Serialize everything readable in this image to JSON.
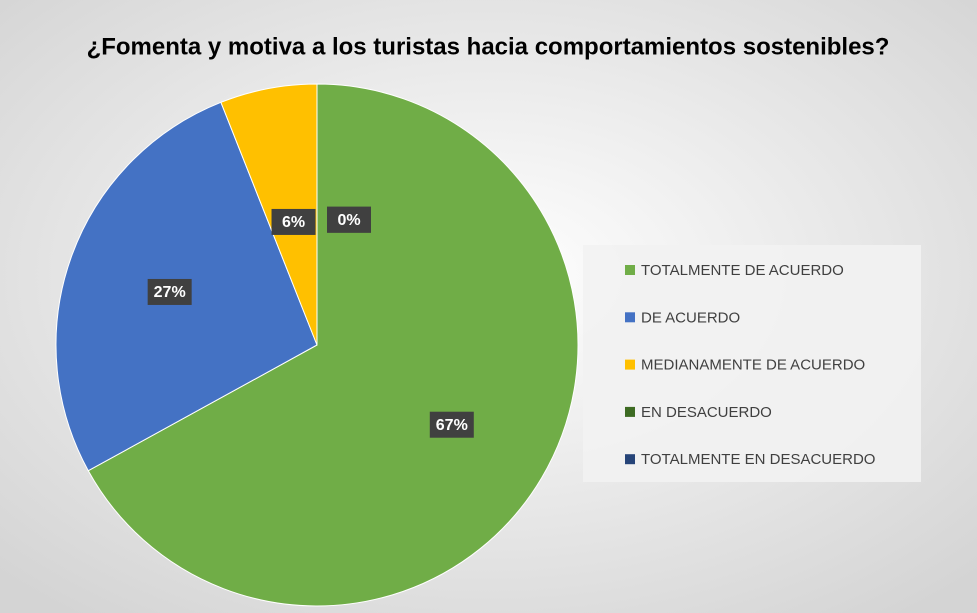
{
  "chart_data": {
    "type": "pie",
    "title": "¿Fomenta y motiva a  los turistas hacia comportamientos sostenibles?",
    "categories": [
      "TOTALMENTE DE ACUERDO",
      "DE ACUERDO",
      "MEDIANAMENTE DE ACUERDO",
      "EN DESACUERDO",
      "TOTALMENTE EN DESACUERDO"
    ],
    "values": [
      67,
      27,
      6,
      0,
      0
    ],
    "value_labels": [
      "67%",
      "27%",
      "6%",
      "0%",
      "0%"
    ],
    "colors": [
      "#70ad47",
      "#4472c4",
      "#ffc000",
      "#3d6b23",
      "#264478"
    ],
    "legend": "right"
  }
}
